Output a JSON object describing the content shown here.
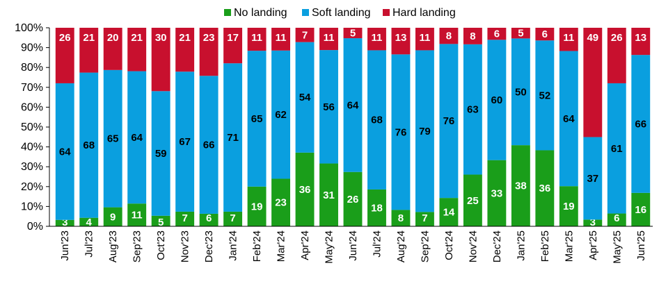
{
  "chart_data": {
    "type": "bar",
    "stacked": true,
    "normalized_to_percent": true,
    "categories": [
      "Jun'23",
      "Jul'23",
      "Aug'23",
      "Sep'23",
      "Oct'23",
      "Nov'23",
      "Dec'23",
      "Jan'24",
      "Feb'24",
      "Mar'24",
      "Apr'24",
      "May'24",
      "Jun'24",
      "Jul'24",
      "Aug'24",
      "Sep'24",
      "Oct'24",
      "Nov'24",
      "Dec'24",
      "Jan'25",
      "Feb'25",
      "Mar'25",
      "Apr'25",
      "May'25",
      "Jun'25"
    ],
    "series": [
      {
        "name": "No landing",
        "color": "#1a9e1a",
        "label_color": "#ffffff",
        "values": [
          3,
          4,
          9,
          11,
          5,
          7,
          6,
          7,
          19,
          23,
          36,
          31,
          26,
          18,
          8,
          7,
          14,
          25,
          33,
          38,
          36,
          19,
          3,
          6,
          16
        ]
      },
      {
        "name": "Soft landing",
        "color": "#0a9fdf",
        "label_color": "#000000",
        "values": [
          64,
          68,
          65,
          64,
          59,
          67,
          66,
          71,
          65,
          62,
          54,
          56,
          64,
          68,
          76,
          79,
          76,
          63,
          60,
          50,
          52,
          64,
          37,
          61,
          66
        ]
      },
      {
        "name": "Hard landing",
        "color": "#c8102e",
        "label_color": "#ffffff",
        "values": [
          26,
          21,
          20,
          21,
          30,
          21,
          23,
          17,
          11,
          11,
          7,
          11,
          5,
          11,
          13,
          11,
          8,
          8,
          6,
          5,
          6,
          11,
          49,
          26,
          13
        ]
      }
    ],
    "ylim": [
      0,
      100
    ],
    "yticks": [
      "0%",
      "10%",
      "20%",
      "30%",
      "40%",
      "50%",
      "60%",
      "70%",
      "80%",
      "90%",
      "100%"
    ],
    "legend_position": "top-center",
    "grid": false
  }
}
